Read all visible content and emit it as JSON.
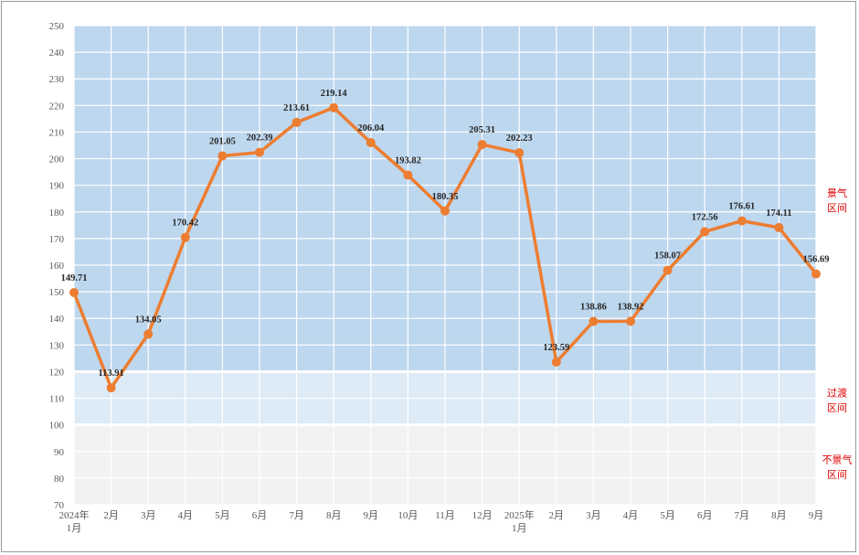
{
  "chart_data": {
    "type": "line",
    "title": "",
    "xlabel": "",
    "ylabel": "",
    "ylim": [
      70,
      250
    ],
    "y_step": 10,
    "grid": true,
    "categories": [
      "2024年\n1月",
      "2月",
      "3月",
      "4月",
      "5月",
      "6月",
      "7月",
      "8月",
      "9月",
      "10月",
      "11月",
      "12月",
      "2025年\n1月",
      "2月",
      "3月",
      "4月",
      "5月",
      "6月",
      "7月",
      "8月",
      "9月"
    ],
    "series": [
      {
        "values": [
          149.71,
          113.91,
          134.05,
          170.42,
          201.05,
          202.39,
          213.61,
          219.14,
          206.04,
          193.82,
          180.35,
          205.31,
          202.23,
          123.59,
          138.86,
          138.92,
          158.07,
          172.56,
          176.61,
          174.11,
          156.69
        ],
        "labels": [
          "149.71",
          "113.91",
          "134.05",
          "170.42",
          "201.05",
          "202.39",
          "213.61",
          "219.14",
          "206.04",
          "193.82",
          "180.35",
          "205.31",
          "202.23",
          "123.59",
          "138.86",
          "138.92",
          "158.07",
          "172.56",
          "176.61",
          "174.11",
          "156.69"
        ],
        "color": "#ed7d31"
      }
    ],
    "bands": [
      {
        "from": 120,
        "to": 250,
        "color": "#bdd7ee",
        "label": [
          "景气",
          "区间"
        ]
      },
      {
        "from": 100,
        "to": 120,
        "color": "#ddebf7",
        "label": [
          "过渡",
          "区间"
        ]
      },
      {
        "from": 70,
        "to": 100,
        "color": "#f2f2f2",
        "label": [
          "不景气",
          "区间"
        ]
      }
    ],
    "colors": {
      "line": "#ed7d31",
      "grid": "#ffffff",
      "axis_text": "#595959",
      "zone_text": "#e00000",
      "label_text": "#262626"
    }
  }
}
